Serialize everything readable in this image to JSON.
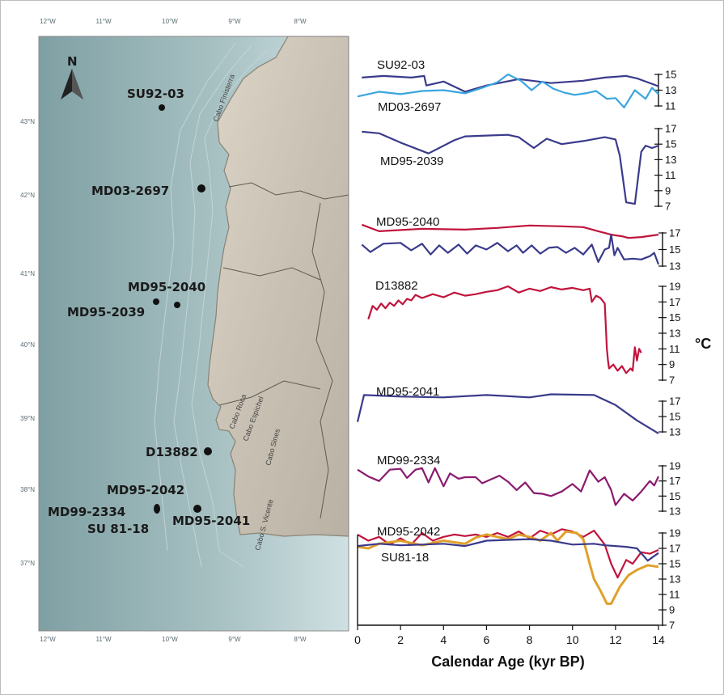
{
  "map": {
    "north_label": "N",
    "lon_labels": [
      "12°W",
      "11°W",
      "10°W",
      "9°W",
      "8°W"
    ],
    "lat_labels": [
      "43°N",
      "42°N",
      "41°N",
      "40°N",
      "39°N",
      "38°N",
      "37°N"
    ],
    "places": [
      "Cabo Finisterra",
      "Cabo Roca",
      "Cabo Espichel",
      "Cabo Sines",
      "Cabo S. Vicente"
    ],
    "sites": [
      {
        "label": "SU92-03",
        "lon": -10.4,
        "lat": 43.2
      },
      {
        "label": "MD03-2697",
        "lon": -9.55,
        "lat": 42.15
      },
      {
        "label": "MD95-2040",
        "lon": -10.35,
        "lat": 40.58
      },
      {
        "label": "MD95-2039",
        "lon": -10.35,
        "lat": 40.58
      },
      {
        "label": "D13882",
        "lon": -9.45,
        "lat": 38.63
      },
      {
        "label": "MD95-2042",
        "lon": -10.17,
        "lat": 37.8
      },
      {
        "label": "MD99-2334",
        "lon": -10.17,
        "lat": 37.8
      },
      {
        "label": "SU 81-18",
        "lon": -10.17,
        "lat": 37.8
      },
      {
        "label": "MD95-2041",
        "lon": -9.73,
        "lat": 37.83
      }
    ]
  },
  "chart_data": {
    "type": "line",
    "xlabel": "Calendar Age (kyr BP)",
    "ylabel": "°C",
    "xlim": [
      0,
      14
    ],
    "x_ticks": [
      0,
      2,
      4,
      6,
      8,
      10,
      12,
      14
    ],
    "colors": {
      "navy": "#3a3a8c",
      "sky": "#3aa6e0",
      "red": "#c0143c",
      "purple": "#8b1a6e",
      "gold": "#e0a02c"
    },
    "panels": [
      {
        "ylim": [
          11,
          15
        ],
        "yticks": [
          11,
          13,
          15
        ],
        "labels": [
          "SU92-03",
          "MD03-2697"
        ],
        "series": [
          {
            "name": "SU92-03",
            "color": "navy",
            "x": [
              0.2,
              1.2,
              2.5,
              3.1,
              3.2,
              4.0,
              5.0,
              6.0,
              7.5,
              9.0,
              10.5,
              11.5,
              12.5,
              13.0,
              14.0
            ],
            "y": [
              14.6,
              14.8,
              14.6,
              14.8,
              13.6,
              14.1,
              12.8,
              13.6,
              14.4,
              13.9,
              14.2,
              14.6,
              14.8,
              14.5,
              13.5
            ]
          },
          {
            "name": "MD03-2697",
            "color": "sky",
            "x": [
              0.0,
              1.0,
              2.0,
              3.0,
              4.0,
              5.0,
              5.8,
              6.5,
              7.0,
              7.6,
              8.1,
              8.6,
              9.1,
              9.6,
              10.1,
              10.6,
              11.1,
              11.6,
              12.0,
              12.4,
              12.9,
              13.4,
              13.7,
              14.0
            ],
            "y": [
              12.2,
              12.8,
              12.5,
              12.9,
              13.0,
              12.6,
              13.3,
              14.0,
              15.0,
              14.2,
              13.0,
              14.1,
              13.2,
              12.7,
              12.4,
              12.6,
              12.9,
              11.9,
              12.0,
              10.8,
              13.0,
              11.9,
              13.3,
              12.5
            ]
          }
        ]
      },
      {
        "ylim": [
          7,
          17
        ],
        "yticks": [
          7,
          9,
          11,
          13,
          15,
          17
        ],
        "labels": [
          "MD95-2039"
        ],
        "series": [
          {
            "name": "MD95-2039",
            "color": "navy",
            "x": [
              0.2,
              1.0,
              2.0,
              3.3,
              4.5,
              5.0,
              6.0,
              7.0,
              7.5,
              8.2,
              8.8,
              9.5,
              10.5,
              11.5,
              12.0,
              12.2,
              12.5,
              12.9,
              13.2,
              13.4,
              13.7,
              14.0
            ],
            "y": [
              16.6,
              16.4,
              15.2,
              13.8,
              15.5,
              16.0,
              16.1,
              16.2,
              15.9,
              14.5,
              15.7,
              15.0,
              15.4,
              15.9,
              15.6,
              13.5,
              7.5,
              7.3,
              14.0,
              14.8,
              14.5,
              14.8
            ]
          }
        ]
      },
      {
        "ylim": [
          13,
          17
        ],
        "yticks": [
          13,
          15,
          17
        ],
        "labels": [
          "MD95-2040"
        ],
        "series": [
          {
            "name": "MD95-2040 (red)",
            "color": "red",
            "x": [
              0.2,
              1.0,
              3.0,
              5.0,
              6.5,
              8.0,
              9.5,
              10.5,
              11.2,
              11.8,
              12.3,
              12.6,
              13.2,
              14.0
            ],
            "y": [
              18.0,
              17.2,
              17.5,
              17.4,
              17.6,
              17.9,
              17.8,
              17.7,
              17.2,
              16.8,
              16.6,
              16.4,
              16.5,
              16.8
            ]
          },
          {
            "name": "MD95-2040 (navy)",
            "color": "navy",
            "x": [
              0.2,
              0.6,
              1.2,
              2.0,
              2.5,
              3.0,
              3.4,
              3.8,
              4.2,
              4.7,
              5.1,
              5.5,
              6.0,
              6.5,
              7.0,
              7.4,
              7.7,
              8.1,
              8.5,
              8.9,
              9.3,
              9.7,
              10.1,
              10.5,
              10.9,
              11.2,
              11.5,
              11.7,
              11.8,
              11.95,
              12.1,
              12.4,
              12.8,
              13.2,
              13.6,
              13.8,
              14.0
            ],
            "y": [
              15.6,
              14.7,
              15.7,
              15.8,
              14.9,
              15.7,
              14.4,
              15.5,
              14.6,
              15.6,
              14.5,
              15.5,
              15.0,
              15.8,
              14.8,
              15.5,
              14.6,
              15.5,
              14.5,
              15.2,
              15.3,
              14.6,
              15.2,
              14.4,
              15.6,
              13.5,
              15.0,
              15.2,
              16.8,
              14.3,
              15.2,
              13.8,
              13.9,
              13.8,
              14.2,
              14.6,
              13.2
            ]
          }
        ]
      },
      {
        "ylim": [
          7,
          19
        ],
        "yticks": [
          7,
          9,
          11,
          13,
          15,
          17,
          19
        ],
        "labels": [
          "D13882"
        ],
        "series": [
          {
            "name": "D13882",
            "color": "red",
            "x": [
              0.5,
              0.7,
              0.9,
              1.1,
              1.3,
              1.5,
              1.7,
              1.9,
              2.1,
              2.3,
              2.5,
              2.7,
              3.0,
              3.5,
              4.0,
              4.5,
              5.0,
              5.5,
              6.0,
              6.5,
              7.0,
              7.5,
              8.0,
              8.5,
              9.0,
              9.5,
              10.0,
              10.5,
              10.8,
              10.9,
              11.1,
              11.3,
              11.5,
              11.6,
              11.65,
              11.7,
              11.9,
              12.1,
              12.3,
              12.5,
              12.7,
              12.8,
              12.9,
              13.0,
              13.1,
              13.2
            ],
            "y": [
              14.8,
              16.5,
              16.0,
              16.8,
              16.2,
              16.9,
              16.5,
              17.2,
              16.7,
              17.4,
              17.2,
              17.9,
              17.5,
              18.0,
              17.6,
              18.2,
              17.8,
              18.0,
              18.3,
              18.5,
              19.0,
              18.2,
              18.7,
              18.4,
              18.9,
              18.6,
              18.8,
              18.5,
              18.7,
              17.0,
              17.8,
              17.5,
              16.8,
              11.0,
              9.5,
              8.5,
              9.0,
              8.2,
              8.8,
              7.9,
              8.5,
              8.2,
              11.2,
              9.5,
              11.0,
              10.5
            ]
          }
        ]
      },
      {
        "ylim": [
          13,
          17
        ],
        "yticks": [
          13,
          15,
          17
        ],
        "labels": [
          "MD95-2041"
        ],
        "series": [
          {
            "name": "MD95-2041",
            "color": "navy",
            "x": [
              0.0,
              0.3,
              2.0,
              4.0,
              6.0,
              8.0,
              9.0,
              11.0,
              12.0,
              13.0,
              14.0
            ],
            "y": [
              14.3,
              17.8,
              17.6,
              17.5,
              17.8,
              17.5,
              17.9,
              17.8,
              16.5,
              14.5,
              12.8
            ]
          }
        ]
      },
      {
        "ylim": [
          13,
          19
        ],
        "yticks": [
          13,
          15,
          17,
          19
        ],
        "labels": [
          "MD99-2334"
        ],
        "series": [
          {
            "name": "MD99-2334",
            "color": "purple",
            "x": [
              0.0,
              0.5,
              1.0,
              1.5,
              2.0,
              2.3,
              2.7,
              3.0,
              3.3,
              3.6,
              4.0,
              4.3,
              4.7,
              5.0,
              5.5,
              5.8,
              6.2,
              6.6,
              7.0,
              7.4,
              7.8,
              8.2,
              8.6,
              9.0,
              9.5,
              10.0,
              10.4,
              10.8,
              11.2,
              11.5,
              11.8,
              12.0,
              12.4,
              12.8,
              13.2,
              13.6,
              13.8,
              14.0
            ],
            "y": [
              18.5,
              17.6,
              17.0,
              18.5,
              18.6,
              17.4,
              18.5,
              18.7,
              16.8,
              18.7,
              16.3,
              18.0,
              17.3,
              17.5,
              17.5,
              16.7,
              17.2,
              17.7,
              16.9,
              15.8,
              16.8,
              15.4,
              15.3,
              15.0,
              15.6,
              16.6,
              15.6,
              18.4,
              16.9,
              17.5,
              15.8,
              13.8,
              15.3,
              14.4,
              15.6,
              17.0,
              16.4,
              17.6
            ]
          }
        ]
      },
      {
        "ylim": [
          7,
          19
        ],
        "yticks": [
          7,
          9,
          11,
          13,
          15,
          17,
          19
        ],
        "labels": [
          "MD95-2042",
          "SU81-18"
        ],
        "series": [
          {
            "name": "MD95-2042",
            "color": "red",
            "x": [
              0.0,
              0.5,
              1.0,
              1.5,
              2.0,
              2.5,
              3.0,
              3.5,
              4.0,
              4.5,
              5.0,
              5.5,
              6.0,
              6.5,
              7.0,
              7.5,
              8.0,
              8.5,
              9.0,
              9.5,
              10.0,
              10.5,
              11.0,
              11.5,
              11.8,
              12.1,
              12.5,
              12.8,
              13.2,
              13.6,
              14.0
            ],
            "y": [
              18.8,
              18.0,
              18.5,
              17.5,
              18.3,
              17.5,
              19.0,
              18.0,
              18.5,
              18.8,
              18.6,
              18.8,
              18.5,
              19.0,
              18.5,
              19.2,
              18.3,
              19.3,
              18.8,
              19.5,
              19.2,
              18.5,
              19.3,
              17.5,
              15.0,
              13.2,
              15.5,
              15.0,
              16.5,
              16.3,
              16.8
            ]
          },
          {
            "name": "SU81-18",
            "color": "gold",
            "x": [
              0.0,
              0.5,
              1.0,
              2.0,
              3.0,
              4.0,
              5.0,
              5.5,
              6.0,
              7.0,
              7.5,
              8.0,
              8.5,
              9.0,
              9.3,
              9.7,
              10.2,
              10.5,
              10.8,
              11.0,
              11.3,
              11.6,
              11.8,
              12.2,
              12.6,
              13.0,
              13.5,
              14.0
            ],
            "y": [
              17.2,
              17.0,
              17.6,
              18.0,
              17.4,
              18.0,
              17.6,
              18.4,
              18.8,
              18.2,
              18.8,
              18.5,
              18.0,
              19.0,
              18.0,
              19.2,
              19.0,
              18.2,
              15.0,
              13.0,
              11.5,
              9.8,
              9.8,
              12.0,
              13.5,
              14.2,
              14.8,
              14.6
            ]
          },
          {
            "name": "SU81-18 (navy)",
            "color": "navy",
            "x": [
              0.0,
              1.0,
              2.0,
              3.0,
              4.0,
              5.0,
              6.0,
              7.0,
              8.0,
              9.0,
              10.0,
              11.0,
              11.5,
              12.0,
              12.5,
              13.0,
              13.5,
              14.0
            ],
            "y": [
              17.3,
              17.6,
              17.4,
              17.5,
              17.6,
              17.3,
              18.0,
              18.1,
              18.2,
              18.0,
              17.5,
              17.6,
              17.4,
              17.3,
              17.2,
              17.0,
              15.4,
              16.4
            ]
          }
        ]
      }
    ]
  }
}
